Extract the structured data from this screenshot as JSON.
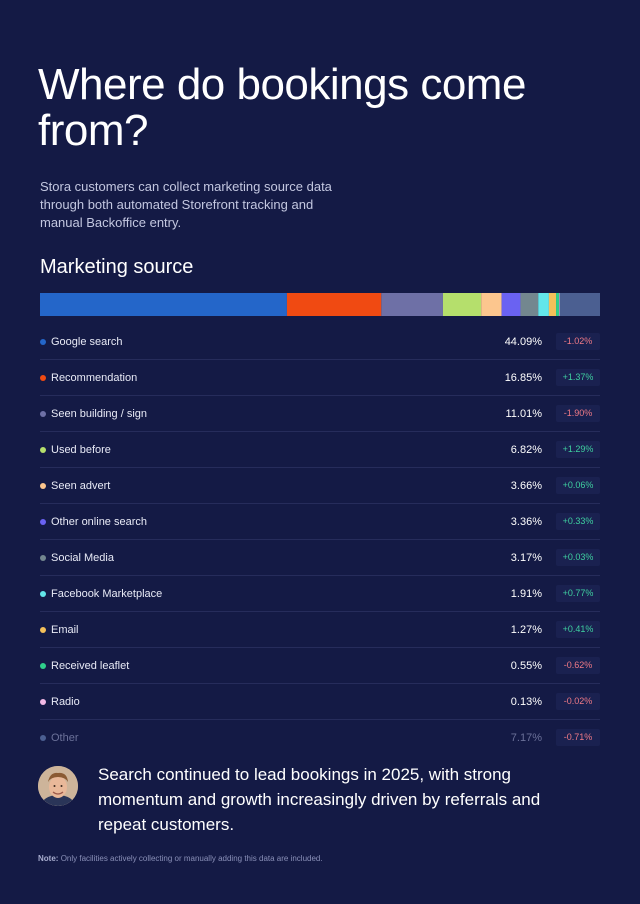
{
  "title": "Where do bookings come from?",
  "intro": "Stora customers can collect marketing source data through both automated Storefront tracking and manual Backoffice entry.",
  "section_title": "Marketing source",
  "chart_data": {
    "type": "bar",
    "title": "Marketing source",
    "categories": [
      "Google search",
      "Recommendation",
      "Seen building / sign",
      "Used before",
      "Seen advert",
      "Other online search",
      "Social Media",
      "Facebook Marketplace",
      "Email",
      "Received leaflet",
      "Radio",
      "Other"
    ],
    "values": [
      44.09,
      16.85,
      11.01,
      6.82,
      3.66,
      3.36,
      3.17,
      1.91,
      1.27,
      0.55,
      0.13,
      7.17
    ],
    "value_labels": [
      "44.09%",
      "16.85%",
      "11.01%",
      "6.82%",
      "3.66%",
      "3.36%",
      "3.17%",
      "1.91%",
      "1.27%",
      "0.55%",
      "0.13%",
      "7.17%"
    ],
    "changes": [
      "-1.02%",
      "+1.37%",
      "-1.90%",
      "+1.29%",
      "+0.06%",
      "+0.33%",
      "+0.03%",
      "+0.77%",
      "+0.41%",
      "-0.62%",
      "-0.02%",
      "-0.71%"
    ],
    "colors": [
      "#2466c9",
      "#f04a12",
      "#6e70a6",
      "#b5df6c",
      "#fcc68e",
      "#6a62f2",
      "#73878f",
      "#63e6ea",
      "#f4c05a",
      "#2fcf8b",
      "#f2b9e6",
      "#4b5f91"
    ],
    "muted_last": true
  },
  "quote": "Search continued to lead bookings in 2025, with strong momentum and growth increasingly driven by referrals and repeat customers.",
  "note": {
    "label": "Note:",
    "text": "Only facilities actively collecting or manually adding this data are included."
  }
}
